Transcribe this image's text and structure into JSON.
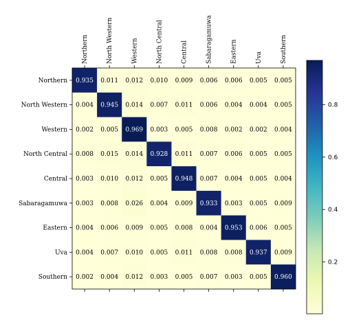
{
  "chart_data": {
    "type": "heatmap",
    "x_categories": [
      "Northern",
      "North Western",
      "Western",
      "North Central",
      "Central",
      "Sabaragamuwa",
      "Eastern",
      "Uva",
      "Southern"
    ],
    "y_categories": [
      "Northern",
      "North Western",
      "Western",
      "North Central",
      "Central",
      "Sabaragamuwa",
      "Eastern",
      "Uva",
      "Southern"
    ],
    "values": [
      [
        0.935,
        0.011,
        0.012,
        0.01,
        0.009,
        0.006,
        0.006,
        0.005,
        0.005
      ],
      [
        0.004,
        0.945,
        0.014,
        0.007,
        0.011,
        0.006,
        0.004,
        0.004,
        0.005
      ],
      [
        0.002,
        0.005,
        0.969,
        0.003,
        0.005,
        0.008,
        0.002,
        0.002,
        0.004
      ],
      [
        0.008,
        0.015,
        0.014,
        0.928,
        0.011,
        0.007,
        0.006,
        0.005,
        0.005
      ],
      [
        0.003,
        0.01,
        0.012,
        0.005,
        0.948,
        0.007,
        0.004,
        0.005,
        0.004
      ],
      [
        0.003,
        0.008,
        0.026,
        0.004,
        0.009,
        0.933,
        0.003,
        0.005,
        0.009
      ],
      [
        0.004,
        0.006,
        0.009,
        0.005,
        0.008,
        0.004,
        0.953,
        0.006,
        0.005
      ],
      [
        0.004,
        0.007,
        0.01,
        0.005,
        0.011,
        0.008,
        0.008,
        0.937,
        0.009
      ],
      [
        0.002,
        0.004,
        0.012,
        0.003,
        0.005,
        0.007,
        0.003,
        0.005,
        0.96
      ]
    ],
    "value_labels": [
      [
        "0.935",
        "0.011",
        "0.012",
        "0.010",
        "0.009",
        "0.006",
        "0.006",
        "0.005",
        "0.005"
      ],
      [
        "0.004",
        "0.945",
        "0.014",
        "0.007",
        "0.011",
        "0.006",
        "0.004",
        "0.004",
        "0.005"
      ],
      [
        "0.002",
        "0.005",
        "0.969",
        "0.003",
        "0.005",
        "0.008",
        "0.002",
        "0.002",
        "0.004"
      ],
      [
        "0.008",
        "0.015",
        "0.014",
        "0.928",
        "0.011",
        "0.007",
        "0.006",
        "0.005",
        "0.005"
      ],
      [
        "0.003",
        "0.010",
        "0.012",
        "0.005",
        "0.948",
        "0.007",
        "0.004",
        "0.005",
        "0.004"
      ],
      [
        "0.003",
        "0.008",
        "0.026",
        "0.004",
        "0.009",
        "0.933",
        "0.003",
        "0.005",
        "0.009"
      ],
      [
        "0.004",
        "0.006",
        "0.009",
        "0.005",
        "0.008",
        "0.004",
        "0.953",
        "0.006",
        "0.005"
      ],
      [
        "0.004",
        "0.007",
        "0.010",
        "0.005",
        "0.011",
        "0.008",
        "0.008",
        "0.937",
        "0.009"
      ],
      [
        "0.002",
        "0.004",
        "0.012",
        "0.003",
        "0.005",
        "0.007",
        "0.003",
        "0.005",
        "0.960"
      ]
    ],
    "clim": [
      0.002,
      0.969
    ],
    "cticks": [
      0.2,
      0.4,
      0.6,
      0.8
    ],
    "colormap": [
      "#ffffd9",
      "#edf8b1",
      "#c7e9b4",
      "#7fcdbb",
      "#41b6c4",
      "#1d91c0",
      "#225ea8",
      "#253494",
      "#081d58"
    ]
  }
}
